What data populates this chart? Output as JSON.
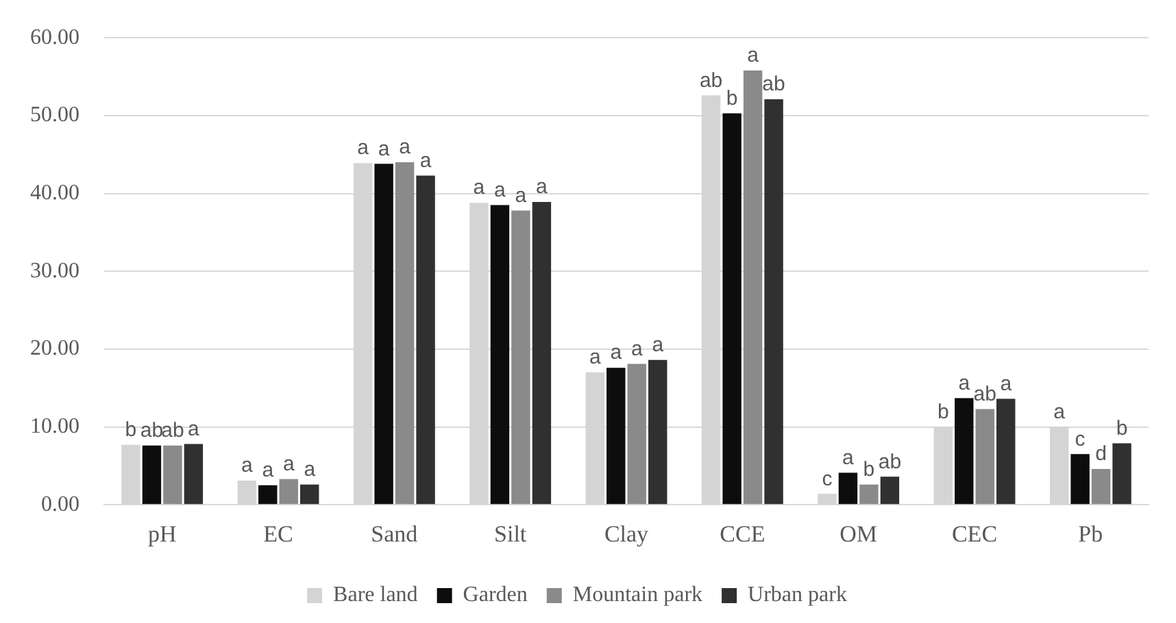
{
  "chart_data": {
    "type": "bar",
    "categories": [
      "pH",
      "EC",
      "Sand",
      "Silt",
      "Clay",
      "CCE",
      "OM",
      "CEC",
      "Pb"
    ],
    "series": [
      {
        "name": "Bare land",
        "color": "#d4d4d4",
        "values": [
          7.7,
          3.1,
          43.9,
          38.8,
          17.0,
          52.6,
          1.4,
          10.0,
          10.0
        ],
        "value_labels": [
          "b",
          "a",
          "a",
          "a",
          "a",
          "ab",
          "c",
          "b",
          "a"
        ]
      },
      {
        "name": "Garden",
        "color": "#0d0d0d",
        "values": [
          7.6,
          2.5,
          43.8,
          38.5,
          17.6,
          50.3,
          4.1,
          13.7,
          6.5
        ],
        "value_labels": [
          "ab",
          "a",
          "a",
          "a",
          "a",
          "b",
          "a",
          "a",
          "c"
        ]
      },
      {
        "name": "Mountain park",
        "color": "#8a8a8a",
        "values": [
          7.6,
          3.3,
          44.0,
          37.8,
          18.1,
          55.8,
          2.6,
          12.3,
          4.6
        ],
        "value_labels": [
          "ab",
          "a",
          "a",
          "a",
          "a",
          "a",
          "b",
          "ab",
          "d"
        ]
      },
      {
        "name": "Urban park",
        "color": "#303030",
        "values": [
          7.8,
          2.6,
          42.3,
          38.9,
          18.6,
          52.1,
          3.6,
          13.6,
          7.9
        ],
        "value_labels": [
          "a",
          "a",
          "a",
          "a",
          "a",
          "ab",
          "ab",
          "a",
          "b"
        ]
      }
    ],
    "ylim": [
      0,
      60
    ],
    "yticks": [
      {
        "value": 0,
        "label": "0.00"
      },
      {
        "value": 10,
        "label": "10.00"
      },
      {
        "value": 20,
        "label": "20.00"
      },
      {
        "value": 30,
        "label": "30.00"
      },
      {
        "value": 40,
        "label": "40.00"
      },
      {
        "value": 50,
        "label": "50.00"
      },
      {
        "value": 60,
        "label": "60.00"
      }
    ],
    "grid": "y",
    "legend": "bottom"
  }
}
